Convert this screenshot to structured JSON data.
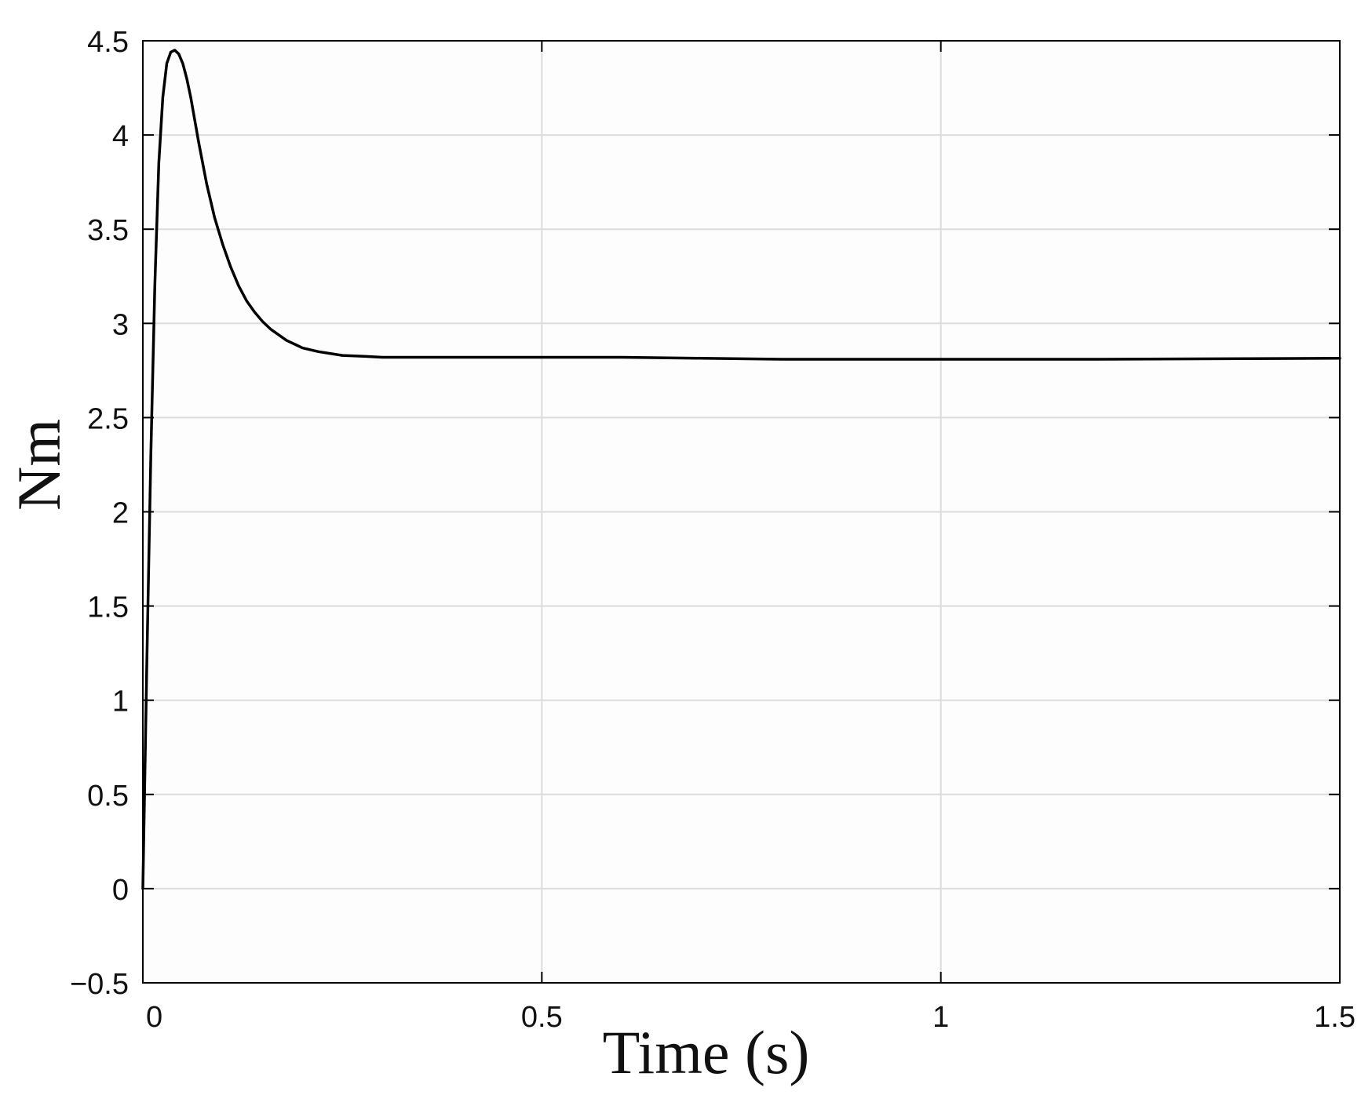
{
  "chart_data": {
    "type": "line",
    "title": "",
    "xlabel": "Time (s)",
    "ylabel": "Nm",
    "xlim": [
      0,
      1.5
    ],
    "ylim": [
      -0.5,
      4.5
    ],
    "x_ticks": [
      0,
      0.5,
      1,
      1.5
    ],
    "x_tick_labels": [
      "0",
      "0.5",
      "1",
      "1.5"
    ],
    "y_ticks": [
      -0.5,
      0,
      0.5,
      1,
      1.5,
      2,
      2.5,
      3,
      3.5,
      4,
      4.5
    ],
    "y_tick_labels": [
      "−0.5",
      "0",
      "0.5",
      "1",
      "1.5",
      "2",
      "2.5",
      "3",
      "3.5",
      "4",
      "4.5"
    ],
    "grid": true,
    "legend": "none",
    "colors": {
      "line": "#000000",
      "grid": "#dcdcdc",
      "background": "#fdfdfd",
      "axes": "#000000"
    },
    "series": [
      {
        "x": [
          0,
          0.005,
          0.01,
          0.015,
          0.02,
          0.025,
          0.03,
          0.035,
          0.04,
          0.045,
          0.05,
          0.055,
          0.06,
          0.065,
          0.07,
          0.08,
          0.09,
          0.1,
          0.11,
          0.12,
          0.13,
          0.14,
          0.15,
          0.16,
          0.18,
          0.2,
          0.22,
          0.25,
          0.28,
          0.3,
          0.35,
          0.4,
          0.45,
          0.5,
          0.6,
          0.7,
          0.8,
          1.0,
          1.2,
          1.5
        ],
        "y": [
          0,
          1.2,
          2.3,
          3.2,
          3.85,
          4.2,
          4.38,
          4.44,
          4.45,
          4.43,
          4.38,
          4.3,
          4.2,
          4.08,
          3.96,
          3.74,
          3.56,
          3.42,
          3.3,
          3.2,
          3.12,
          3.06,
          3.01,
          2.97,
          2.91,
          2.87,
          2.85,
          2.83,
          2.825,
          2.82,
          2.82,
          2.82,
          2.82,
          2.82,
          2.82,
          2.815,
          2.81,
          2.81,
          2.81,
          2.815
        ]
      }
    ]
  }
}
